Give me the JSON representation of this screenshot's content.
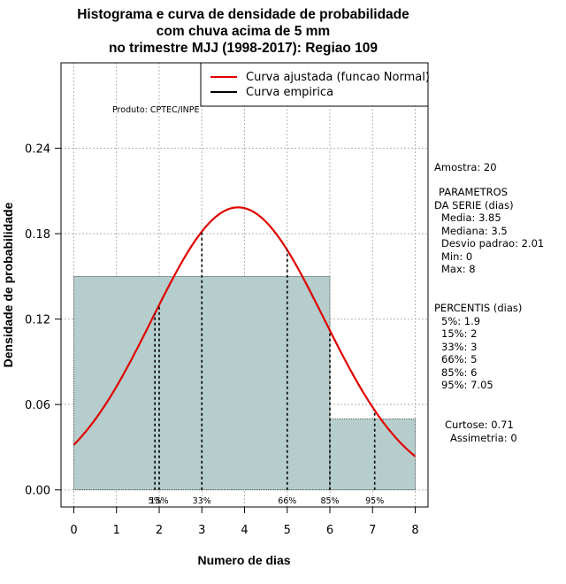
{
  "chart_data": {
    "type": "histogram",
    "title_lines": [
      "Histograma e curva de densidade de probabilidade",
      "com chuva acima de 5 mm",
      "no trimestre MJJ (1998-2017): Regiao 109"
    ],
    "xlabel": "Numero de dias",
    "ylabel": "Densidade de probabilidade",
    "xlim": [
      -0.3,
      8.3
    ],
    "ylim": [
      -0.012,
      0.3
    ],
    "x_ticks": [
      0,
      1,
      2,
      3,
      4,
      5,
      6,
      7,
      8
    ],
    "y_ticks": [
      0.0,
      0.06,
      0.12,
      0.18,
      0.24
    ],
    "y_tick_labels": [
      "0.00",
      "0.06",
      "0.12",
      "0.18",
      "0.24"
    ],
    "grid": true,
    "bars": [
      {
        "x0": 0,
        "x1": 6,
        "density": 0.15
      },
      {
        "x0": 6,
        "x1": 8,
        "density": 0.05
      }
    ],
    "normal_fit": {
      "mean": 3.85,
      "sd": 2.01,
      "x_range": [
        0,
        8
      ],
      "color": "#e00000"
    },
    "percentile_lines": [
      {
        "label": "5%",
        "x": 1.9
      },
      {
        "label": "15%",
        "x": 2
      },
      {
        "label": "33%",
        "x": 3
      },
      {
        "label": "66%",
        "x": 5
      },
      {
        "label": "85%",
        "x": 6
      },
      {
        "label": "95%",
        "x": 7.05
      }
    ],
    "legend": {
      "position": "top-right",
      "entries": [
        {
          "label": "Curva ajustada (funcao Normal)",
          "color": "#e00000"
        },
        {
          "label": "Curva empirica",
          "color": "#000000"
        }
      ]
    },
    "bar_color": "#b5cdcd"
  },
  "credit": "Produto: CPTEC/INPE",
  "stats": {
    "amostra": "Amostra: 20",
    "parametros_lines": [
      "PARAMETROS",
      "DA SERIE (dias)"
    ],
    "param_items": [
      "Media: 3.85",
      "Mediana: 3.5",
      "Desvio padrao: 2.01",
      "Min: 0",
      "Max: 8"
    ],
    "percentis_title": "PERCENTIS (dias)",
    "percentis_items": [
      "5%: 1.9",
      "15%: 2",
      "33%: 3",
      "66%: 5",
      "85%: 6",
      "95%: 7.05"
    ],
    "curtose": "Curtose: 0.71",
    "assimetria": "Assimetria: 0"
  }
}
